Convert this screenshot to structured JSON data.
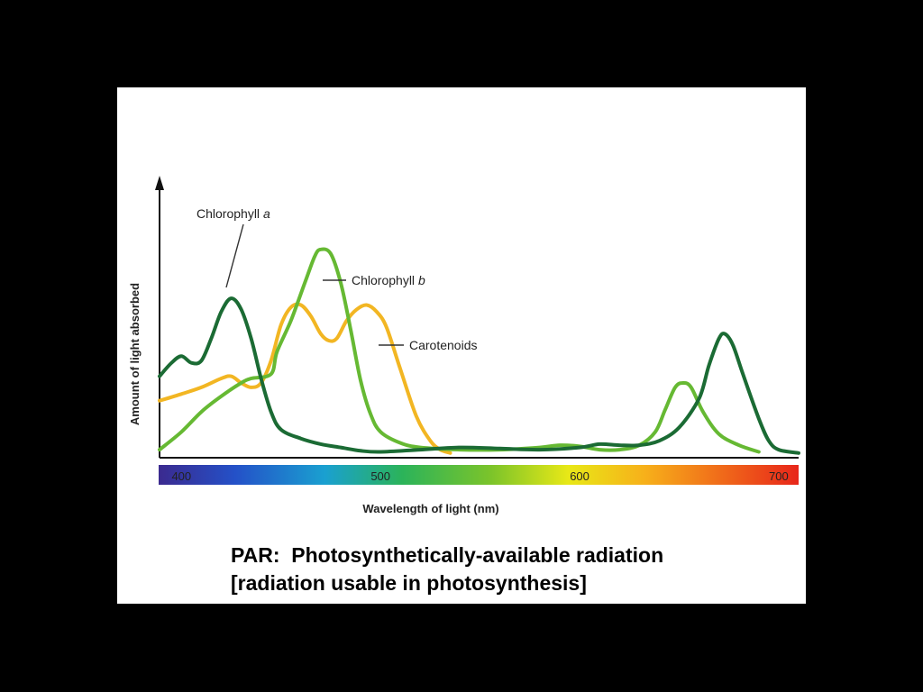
{
  "chart_data": {
    "type": "line",
    "title": "",
    "xlabel": "Wavelength of light (nm)",
    "ylabel": "Amount of light absorbed",
    "xlim": [
      389,
      710
    ],
    "ylim": [
      0,
      1
    ],
    "x_ticks": [
      400,
      500,
      600,
      700
    ],
    "grid": false,
    "legend": "annotations",
    "colors": {
      "chlorophyll_a": "#1b6b34",
      "chlorophyll_b": "#66b933",
      "carotenoids": "#f2b623",
      "spectrum": [
        "#3b2a8f",
        "#2451c8",
        "#1aa0d0",
        "#2bb35a",
        "#7cc42a",
        "#e8e817",
        "#f7b01a",
        "#f06a1a",
        "#e8261a"
      ]
    },
    "series": [
      {
        "name": "Chlorophyll a",
        "color": "#1b6b34",
        "points": [
          [
            389,
            0.35
          ],
          [
            395,
            0.41
          ],
          [
            400,
            0.44
          ],
          [
            405,
            0.41
          ],
          [
            410,
            0.42
          ],
          [
            415,
            0.52
          ],
          [
            420,
            0.64
          ],
          [
            425,
            0.7
          ],
          [
            430,
            0.65
          ],
          [
            435,
            0.52
          ],
          [
            440,
            0.34
          ],
          [
            445,
            0.19
          ],
          [
            450,
            0.11
          ],
          [
            460,
            0.07
          ],
          [
            470,
            0.045
          ],
          [
            480,
            0.03
          ],
          [
            490,
            0.015
          ],
          [
            500,
            0.01
          ],
          [
            520,
            0.02
          ],
          [
            540,
            0.03
          ],
          [
            560,
            0.025
          ],
          [
            580,
            0.02
          ],
          [
            600,
            0.03
          ],
          [
            610,
            0.045
          ],
          [
            620,
            0.04
          ],
          [
            630,
            0.04
          ],
          [
            640,
            0.06
          ],
          [
            650,
            0.12
          ],
          [
            660,
            0.25
          ],
          [
            665,
            0.4
          ],
          [
            670,
            0.52
          ],
          [
            673,
            0.54
          ],
          [
            677,
            0.49
          ],
          [
            682,
            0.36
          ],
          [
            690,
            0.16
          ],
          [
            695,
            0.06
          ],
          [
            700,
            0.02
          ],
          [
            710,
            0.005
          ]
        ]
      },
      {
        "name": "Chlorophyll b",
        "color": "#66b933",
        "points": [
          [
            389,
            0.02
          ],
          [
            400,
            0.1
          ],
          [
            410,
            0.19
          ],
          [
            420,
            0.26
          ],
          [
            430,
            0.32
          ],
          [
            435,
            0.34
          ],
          [
            445,
            0.36
          ],
          [
            448,
            0.46
          ],
          [
            455,
            0.6
          ],
          [
            462,
            0.77
          ],
          [
            467,
            0.89
          ],
          [
            470,
            0.92
          ],
          [
            475,
            0.9
          ],
          [
            480,
            0.77
          ],
          [
            485,
            0.56
          ],
          [
            490,
            0.33
          ],
          [
            495,
            0.18
          ],
          [
            500,
            0.1
          ],
          [
            510,
            0.05
          ],
          [
            520,
            0.03
          ],
          [
            540,
            0.02
          ],
          [
            560,
            0.02
          ],
          [
            580,
            0.03
          ],
          [
            590,
            0.04
          ],
          [
            600,
            0.035
          ],
          [
            610,
            0.02
          ],
          [
            620,
            0.02
          ],
          [
            630,
            0.04
          ],
          [
            638,
            0.1
          ],
          [
            643,
            0.2
          ],
          [
            648,
            0.3
          ],
          [
            652,
            0.32
          ],
          [
            656,
            0.3
          ],
          [
            662,
            0.19
          ],
          [
            670,
            0.09
          ],
          [
            680,
            0.04
          ],
          [
            690,
            0.01
          ]
        ]
      },
      {
        "name": "Carotenoids",
        "color": "#f2b623",
        "points": [
          [
            389,
            0.24
          ],
          [
            400,
            0.27
          ],
          [
            410,
            0.3
          ],
          [
            420,
            0.34
          ],
          [
            425,
            0.35
          ],
          [
            430,
            0.32
          ],
          [
            435,
            0.3
          ],
          [
            440,
            0.32
          ],
          [
            445,
            0.42
          ],
          [
            450,
            0.58
          ],
          [
            455,
            0.66
          ],
          [
            460,
            0.67
          ],
          [
            465,
            0.62
          ],
          [
            470,
            0.54
          ],
          [
            474,
            0.51
          ],
          [
            478,
            0.52
          ],
          [
            483,
            0.6
          ],
          [
            488,
            0.65
          ],
          [
            493,
            0.67
          ],
          [
            498,
            0.64
          ],
          [
            503,
            0.57
          ],
          [
            510,
            0.38
          ],
          [
            518,
            0.17
          ],
          [
            525,
            0.06
          ],
          [
            530,
            0.02
          ],
          [
            535,
            0.005
          ]
        ]
      }
    ],
    "annotations": [
      {
        "label_main": "Chlorophyll ",
        "label_italic": "a",
        "series": "Chlorophyll a"
      },
      {
        "label_main": "Chlorophyll ",
        "label_italic": "b",
        "series": "Chlorophyll b"
      },
      {
        "label_main": "Carotenoids",
        "label_italic": "",
        "series": "Carotenoids"
      }
    ]
  },
  "caption": {
    "line1": "PAR:  Photosynthetically-available radiation",
    "line2": "[radiation usable in photosynthesis]"
  }
}
